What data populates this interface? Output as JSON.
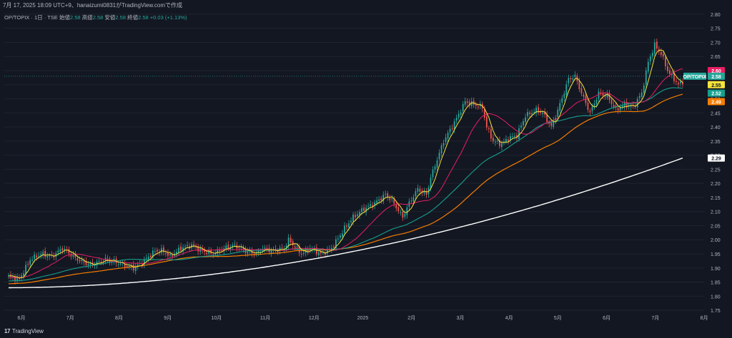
{
  "header": {
    "timestamp_credit": "7月 17, 2025 18:09 UTC+9、hanaizumi0831がTradingView.comで作成"
  },
  "symbol_bar": {
    "symbol": "OP/TOPIX · 1日 · TSE",
    "open_label": "始値",
    "open": "2.58",
    "high_label": "高値",
    "high": "2.58",
    "low_label": "安値",
    "low": "2.58",
    "close_label": "終値",
    "close": "2.58",
    "change": "+0.03 (+1.13%)"
  },
  "footer": {
    "brand": "TradingView",
    "logo_text": "17"
  },
  "colors": {
    "bg": "#131722",
    "grid": "#1f2430",
    "up": "#26a69a",
    "down": "#ef5350",
    "ma_yellow": "#f5e33b",
    "ma_pink": "#e91e63",
    "ma_teal": "#16a08e",
    "ma_orange": "#f57c00",
    "ma_white": "#ffffff"
  },
  "chart_data": {
    "type": "candlestick",
    "y_range": [
      1.73,
      2.82
    ],
    "y_ticks": [
      "2.80",
      "2.75",
      "2.70",
      "2.65",
      "2.60",
      "2.55",
      "2.50",
      "2.45",
      "2.40",
      "2.35",
      "2.30",
      "2.25",
      "2.20",
      "2.15",
      "2.10",
      "2.05",
      "2.00",
      "1.95",
      "1.90",
      "1.85",
      "1.80",
      "1.75"
    ],
    "x_labels": [
      "6月",
      "7月",
      "8月",
      "9月",
      "10月",
      "11月",
      "12月",
      "2025",
      "2月",
      "3月",
      "4月",
      "5月",
      "6月",
      "7月",
      "8月"
    ],
    "price_tags": [
      {
        "label": "2.60",
        "color": "#e91e63"
      },
      {
        "label": "OP/TOPIX",
        "color": "#26a69a"
      },
      {
        "label": "2.58",
        "color": "#26a69a"
      },
      {
        "label": "2.55",
        "color": "#f5e33b"
      },
      {
        "label": "2.52",
        "color": "#16a08e"
      },
      {
        "label": "2.49",
        "color": "#f57c00"
      },
      {
        "label": "2.29",
        "color": "#ffffff"
      }
    ],
    "anchors": [
      [
        0,
        1.87
      ],
      [
        5,
        1.86
      ],
      [
        10,
        1.93
      ],
      [
        15,
        1.95
      ],
      [
        20,
        1.94
      ],
      [
        25,
        1.97
      ],
      [
        32,
        1.93
      ],
      [
        38,
        1.91
      ],
      [
        45,
        1.93
      ],
      [
        50,
        1.92
      ],
      [
        58,
        1.9
      ],
      [
        62,
        1.92
      ],
      [
        68,
        1.96
      ],
      [
        72,
        1.96
      ],
      [
        75,
        1.94
      ],
      [
        80,
        1.97
      ],
      [
        85,
        1.98
      ],
      [
        90,
        1.96
      ],
      [
        95,
        1.95
      ],
      [
        100,
        1.97
      ],
      [
        105,
        1.98
      ],
      [
        110,
        1.96
      ],
      [
        115,
        1.95
      ],
      [
        118,
        1.97
      ],
      [
        122,
        1.96
      ],
      [
        128,
        1.97
      ],
      [
        130,
        2.0
      ],
      [
        136,
        1.95
      ],
      [
        140,
        1.97
      ],
      [
        145,
        1.95
      ],
      [
        150,
        1.97
      ],
      [
        156,
        2.04
      ],
      [
        160,
        2.08
      ],
      [
        165,
        2.11
      ],
      [
        170,
        2.13
      ],
      [
        175,
        2.16
      ],
      [
        178,
        2.14
      ],
      [
        183,
        2.08
      ],
      [
        186,
        2.13
      ],
      [
        190,
        2.18
      ],
      [
        194,
        2.16
      ],
      [
        196,
        2.22
      ],
      [
        202,
        2.35
      ],
      [
        205,
        2.39
      ],
      [
        208,
        2.43
      ],
      [
        212,
        2.49
      ],
      [
        216,
        2.48
      ],
      [
        220,
        2.47
      ],
      [
        222,
        2.4
      ],
      [
        225,
        2.35
      ],
      [
        229,
        2.34
      ],
      [
        232,
        2.36
      ],
      [
        236,
        2.37
      ],
      [
        240,
        2.44
      ],
      [
        245,
        2.46
      ],
      [
        248,
        2.45
      ],
      [
        252,
        2.4
      ],
      [
        256,
        2.48
      ],
      [
        260,
        2.57
      ],
      [
        263,
        2.58
      ],
      [
        266,
        2.52
      ],
      [
        270,
        2.45
      ],
      [
        274,
        2.52
      ],
      [
        278,
        2.51
      ],
      [
        282,
        2.46
      ],
      [
        286,
        2.48
      ],
      [
        290,
        2.47
      ],
      [
        294,
        2.52
      ],
      [
        297,
        2.63
      ],
      [
        300,
        2.69
      ],
      [
        303,
        2.66
      ],
      [
        306,
        2.6
      ],
      [
        309,
        2.57
      ],
      [
        311,
        2.55
      ],
      [
        313,
        2.56
      ]
    ],
    "ma_lengths": {
      "yellow": 5,
      "pink": 20,
      "teal": 50,
      "orange": 75,
      "white": 200
    }
  }
}
